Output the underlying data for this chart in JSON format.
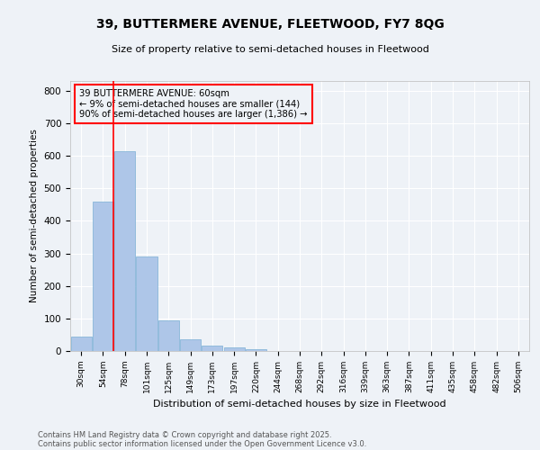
{
  "title1": "39, BUTTERMERE AVENUE, FLEETWOOD, FY7 8QG",
  "title2": "Size of property relative to semi-detached houses in Fleetwood",
  "xlabel": "Distribution of semi-detached houses by size in Fleetwood",
  "ylabel": "Number of semi-detached properties",
  "categories": [
    "30sqm",
    "54sqm",
    "78sqm",
    "101sqm",
    "125sqm",
    "149sqm",
    "173sqm",
    "197sqm",
    "220sqm",
    "244sqm",
    "268sqm",
    "292sqm",
    "316sqm",
    "339sqm",
    "363sqm",
    "387sqm",
    "411sqm",
    "435sqm",
    "458sqm",
    "482sqm",
    "506sqm"
  ],
  "values": [
    45,
    460,
    615,
    290,
    93,
    37,
    17,
    10,
    5,
    0,
    0,
    0,
    0,
    0,
    0,
    0,
    0,
    0,
    0,
    0,
    0
  ],
  "bar_color": "#aec6e8",
  "bar_edge_color": "#7aafd4",
  "red_line_x": 1.48,
  "annotation_text": "39 BUTTERMERE AVENUE: 60sqm\n← 9% of semi-detached houses are smaller (144)\n90% of semi-detached houses are larger (1,386) →",
  "ylim": [
    0,
    830
  ],
  "yticks": [
    0,
    100,
    200,
    300,
    400,
    500,
    600,
    700,
    800
  ],
  "bg_color": "#eef2f7",
  "footer1": "Contains HM Land Registry data © Crown copyright and database right 2025.",
  "footer2": "Contains public sector information licensed under the Open Government Licence v3.0."
}
